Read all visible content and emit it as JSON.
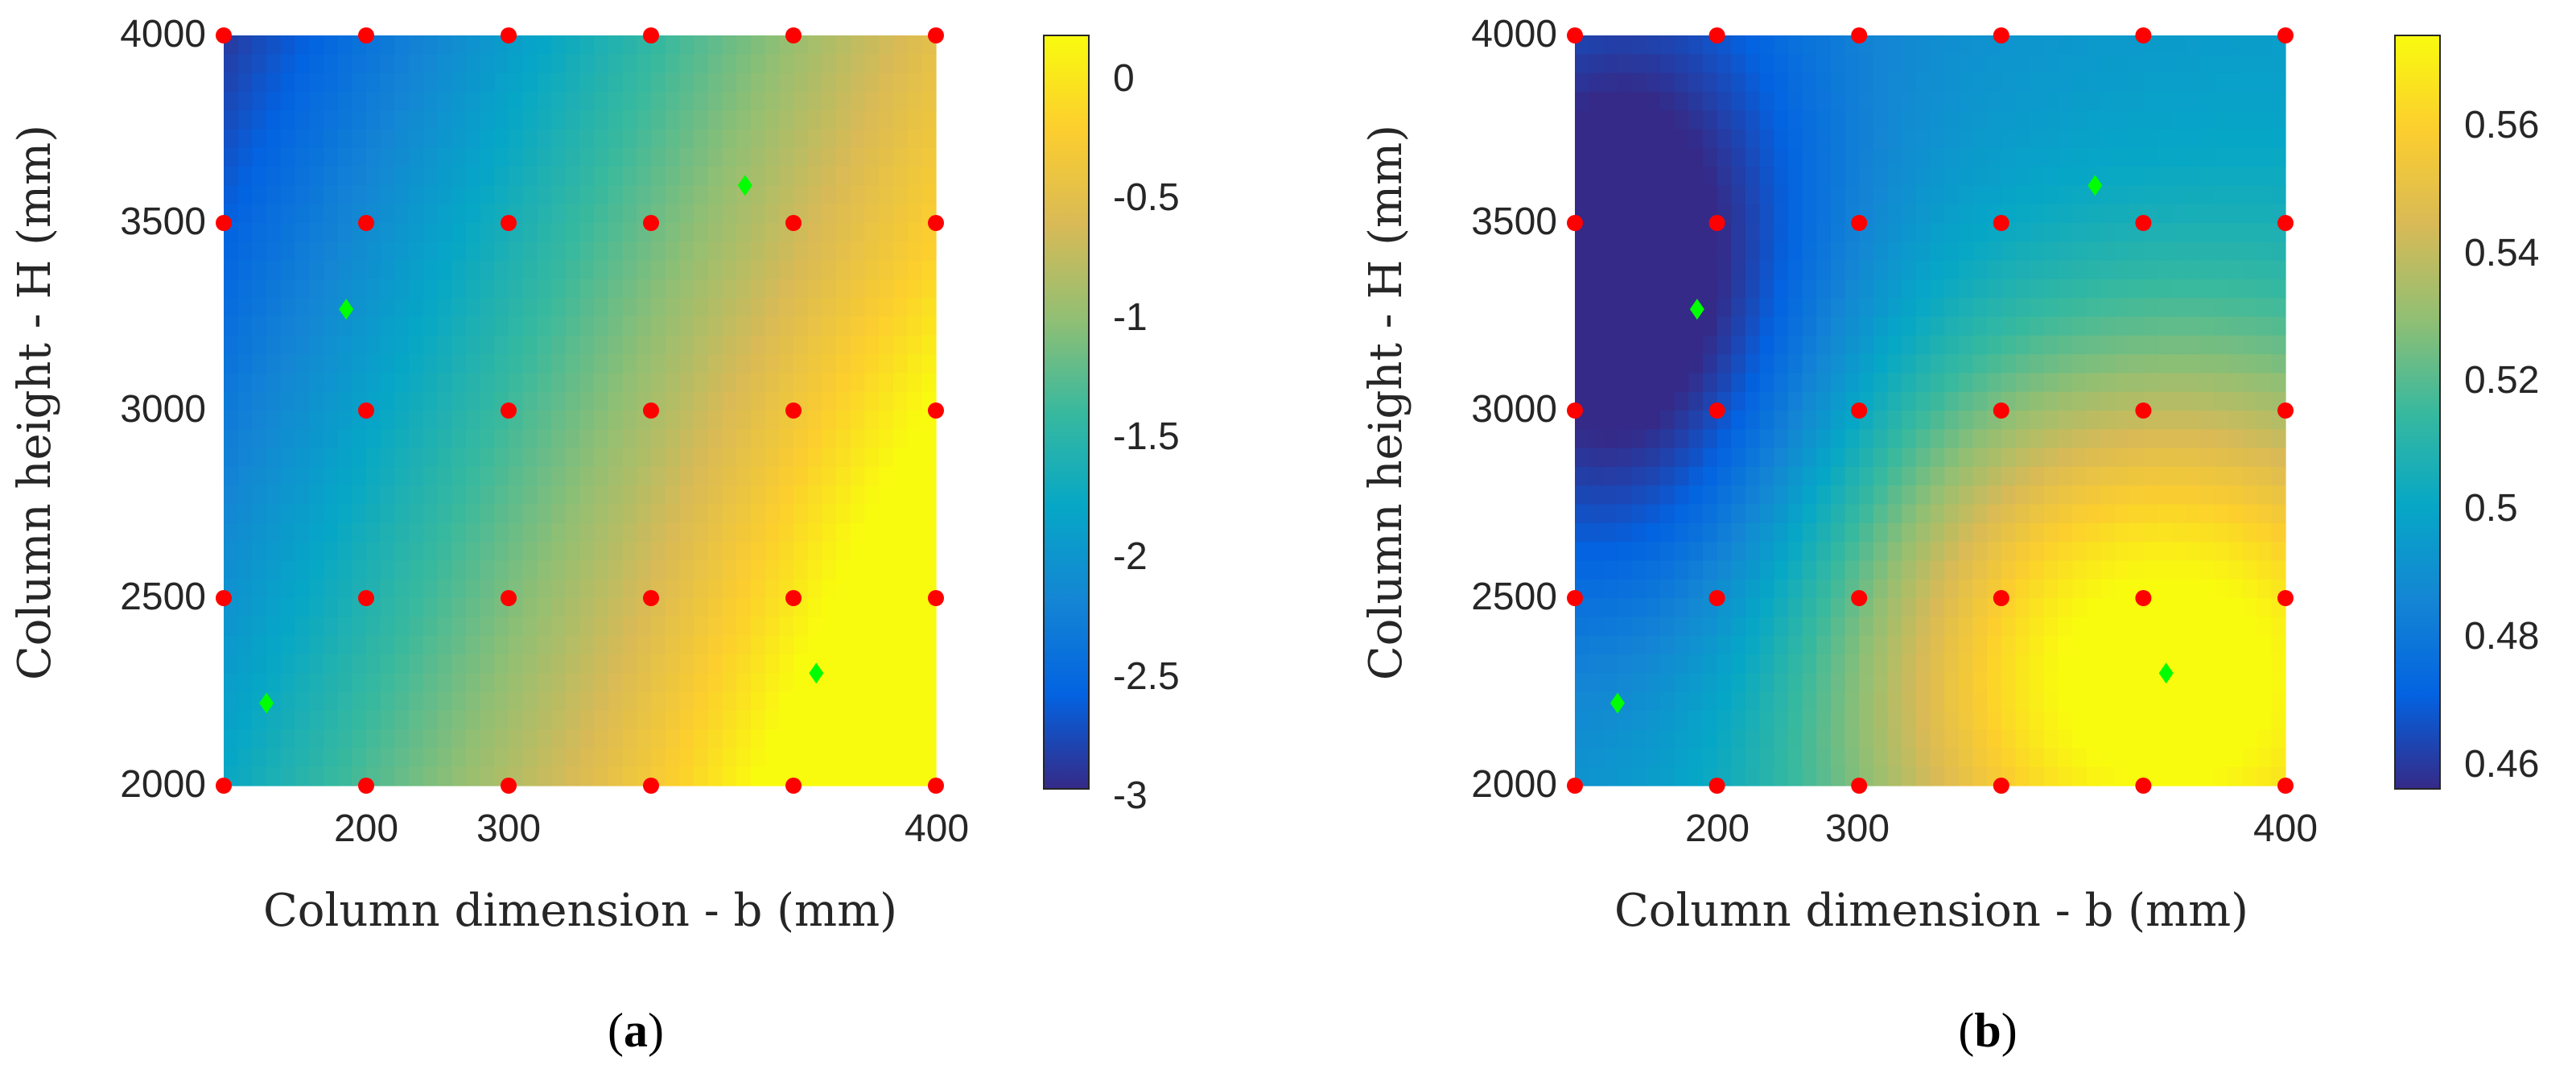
{
  "chart_data": [
    {
      "type": "heatmap",
      "panel_label": "a",
      "xlabel": "Column dimension - b (mm)",
      "ylabel": "Column height - H (mm)",
      "xlim": [
        150,
        400
      ],
      "ylim": [
        2000,
        4000
      ],
      "x_ticks": [
        "200",
        "300",
        "400"
      ],
      "y_ticks": [
        "2000",
        "2500",
        "3000",
        "3500",
        "4000"
      ],
      "colorbar": {
        "range": [
          -3,
          0.15
        ],
        "ticks": [
          "0",
          "-0.5",
          "-1",
          "-1.5",
          "-2",
          "-2.5",
          "-3"
        ]
      },
      "surface": {
        "b0": 150,
        "H0": 4000,
        "value_at_b0_H0": -2.9,
        "slope_b": 0.0095,
        "slope_H": -0.00055,
        "curvature": 0.6
      },
      "sample_points": {
        "color": "#ff0000",
        "b": [
          150,
          200,
          250,
          300,
          350,
          400
        ],
        "H": [
          2000,
          2500,
          3000,
          3500,
          4000
        ],
        "missing": [
          [
            150,
            3000
          ]
        ]
      },
      "optimal_points": {
        "color": "#00ff00",
        "points": [
          [
            165,
            2220
          ],
          [
            193,
            3270
          ],
          [
            333,
            3600
          ],
          [
            358,
            2300
          ]
        ]
      }
    },
    {
      "type": "heatmap",
      "panel_label": "b",
      "xlabel": "Column dimension - b (mm)",
      "ylabel": "Column height - H (mm)",
      "xlim": [
        150,
        400
      ],
      "ylim": [
        2000,
        4000
      ],
      "x_ticks": [
        "200",
        "300",
        "400"
      ],
      "y_ticks": [
        "2000",
        "2500",
        "3000",
        "3500",
        "4000"
      ],
      "colorbar": {
        "range": [
          0.456,
          0.574
        ],
        "ticks": [
          "0.46",
          "0.48",
          "0.5",
          "0.52",
          "0.54",
          "0.56"
        ]
      },
      "surface": {
        "peak_b": 355,
        "peak_H": 2300,
        "peak_value": 0.572,
        "min_b": 170,
        "min_H": 3300,
        "min_value": 0.465
      },
      "sample_points": {
        "color": "#ff0000",
        "b": [
          150,
          200,
          250,
          300,
          350,
          400
        ],
        "H": [
          2000,
          2500,
          3000,
          3500,
          4000
        ],
        "missing": []
      },
      "optimal_points": {
        "color": "#00ff00",
        "points": [
          [
            165,
            2220
          ],
          [
            193,
            3270
          ],
          [
            333,
            3600
          ],
          [
            358,
            2300
          ]
        ]
      }
    }
  ]
}
